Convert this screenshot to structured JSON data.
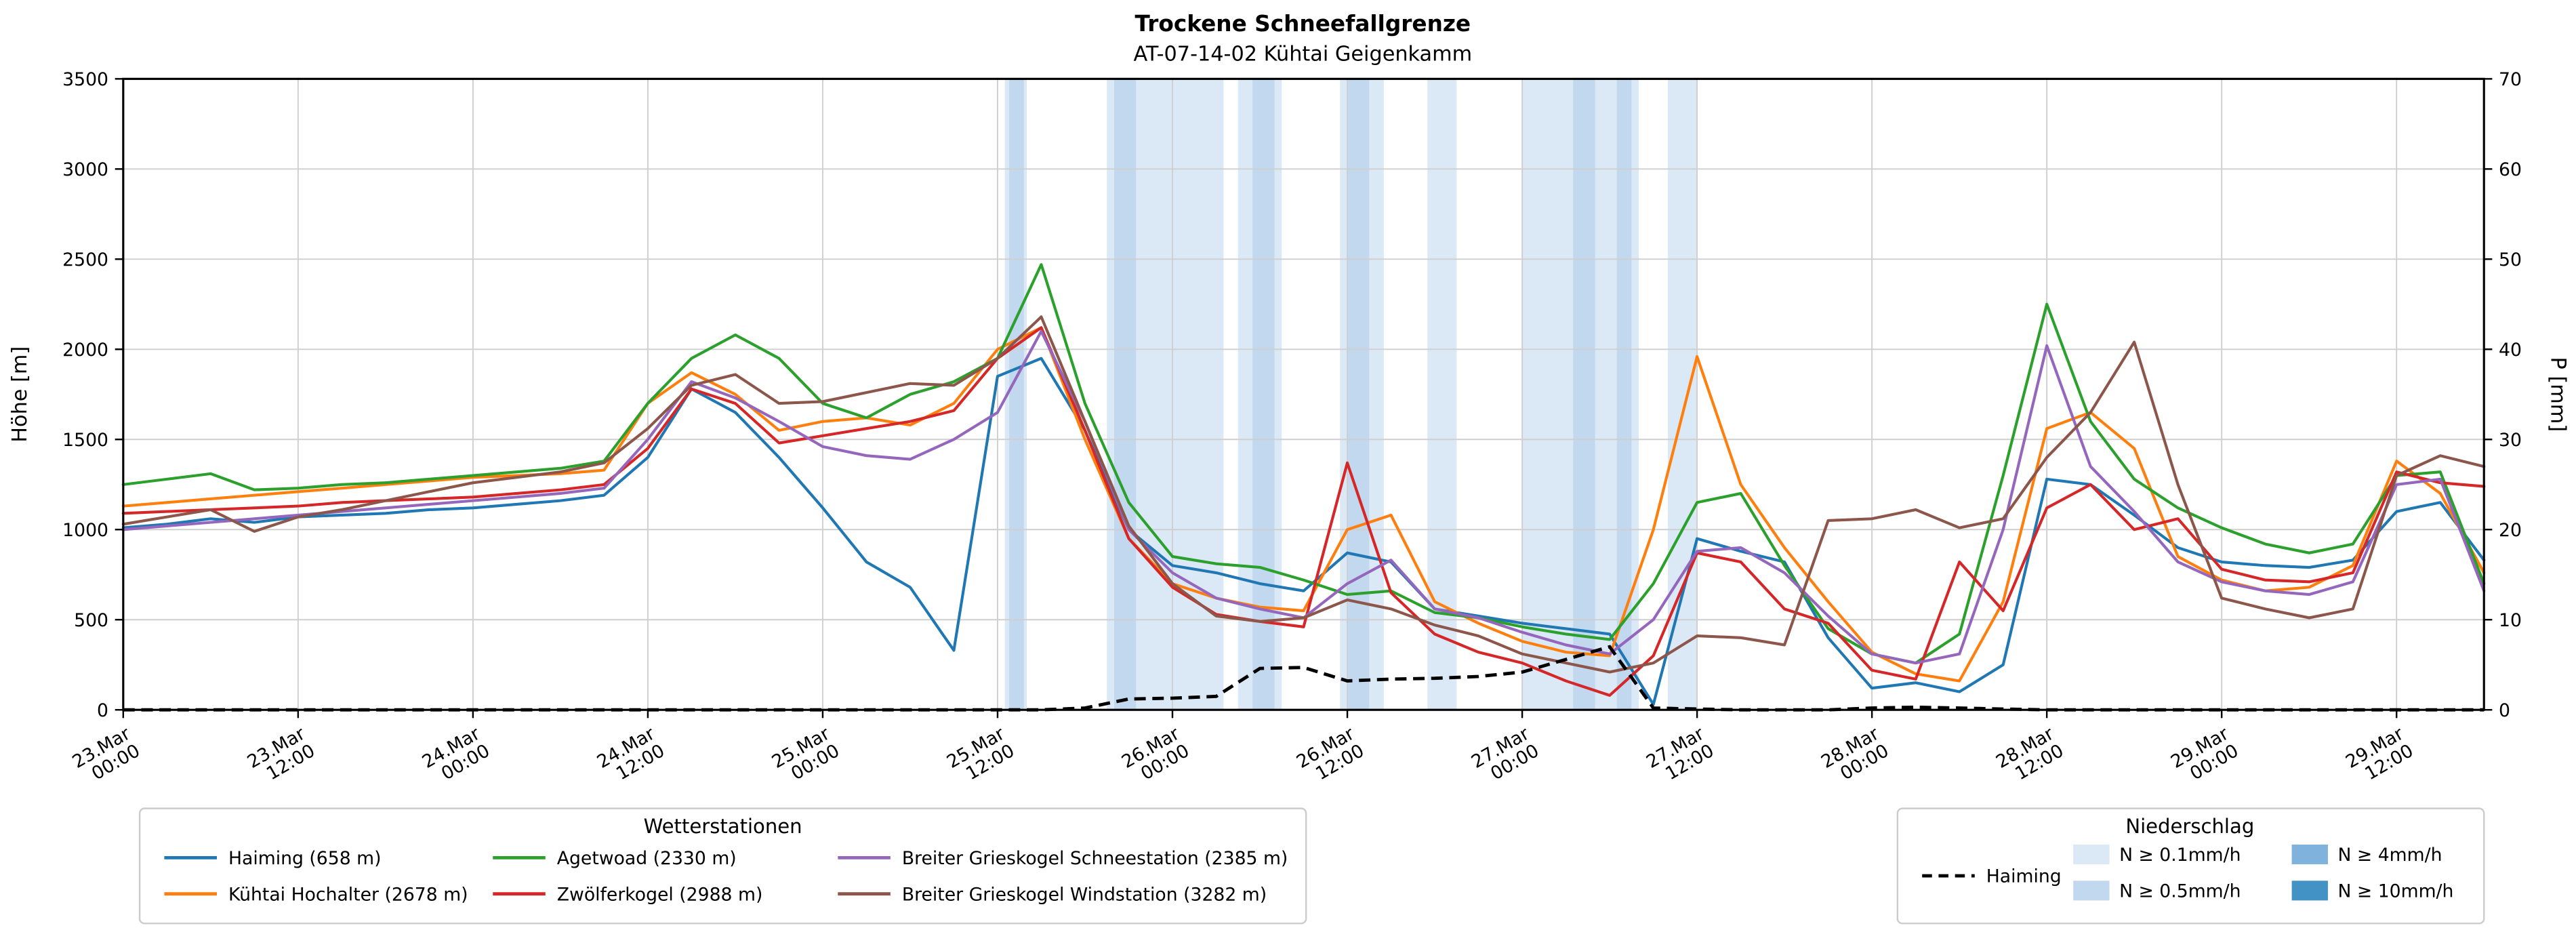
{
  "title": "Trockene Schneefallgrenze",
  "subtitle": "AT-07-14-02 Kühtai Geigenkamm",
  "chart_data": {
    "type": "line",
    "x_start": 0,
    "x_step": 3,
    "x_max": 162,
    "x_ticks": [
      {
        "t": 0,
        "date": "23.Mar",
        "time": "00:00"
      },
      {
        "t": 12,
        "date": "23.Mar",
        "time": "12:00"
      },
      {
        "t": 24,
        "date": "24.Mar",
        "time": "00:00"
      },
      {
        "t": 36,
        "date": "24.Mar",
        "time": "12:00"
      },
      {
        "t": 48,
        "date": "25.Mar",
        "time": "00:00"
      },
      {
        "t": 60,
        "date": "25.Mar",
        "time": "12:00"
      },
      {
        "t": 72,
        "date": "26.Mar",
        "time": "00:00"
      },
      {
        "t": 84,
        "date": "26.Mar",
        "time": "12:00"
      },
      {
        "t": 96,
        "date": "27.Mar",
        "time": "00:00"
      },
      {
        "t": 108,
        "date": "27.Mar",
        "time": "12:00"
      },
      {
        "t": 120,
        "date": "28.Mar",
        "time": "00:00"
      },
      {
        "t": 132,
        "date": "28.Mar",
        "time": "12:00"
      },
      {
        "t": 144,
        "date": "29.Mar",
        "time": "00:00"
      },
      {
        "t": 156,
        "date": "29.Mar",
        "time": "12:00"
      }
    ],
    "y_left": {
      "label": "Höhe [m]",
      "min": 0,
      "max": 3500,
      "step": 500
    },
    "y_right": {
      "label": "P [mm]",
      "min": 0,
      "max": 70,
      "step": 10
    },
    "series": [
      {
        "name": "Haiming (658 m)",
        "color": "#1f77b4",
        "values": [
          1010,
          1030,
          1060,
          1040,
          1070,
          1080,
          1090,
          1110,
          1120,
          1140,
          1160,
          1190,
          1400,
          1780,
          1650,
          1400,
          1120,
          820,
          680,
          330,
          1850,
          1950,
          1550,
          1000,
          800,
          760,
          700,
          660,
          870,
          820,
          560,
          520,
          480,
          450,
          420,
          30,
          950,
          880,
          820,
          400,
          120,
          150,
          100,
          250,
          1280,
          1250,
          1080,
          900,
          820,
          800,
          790,
          830,
          1100,
          1150,
          830
        ]
      },
      {
        "name": "Kühtai Hochalter (2678 m)",
        "color": "#ff7f0e",
        "values": [
          1130,
          1150,
          1170,
          1190,
          1210,
          1230,
          1250,
          1270,
          1290,
          1300,
          1310,
          1330,
          1700,
          1870,
          1750,
          1550,
          1600,
          1620,
          1580,
          1700,
          2000,
          2120,
          1500,
          950,
          700,
          620,
          570,
          550,
          1000,
          1080,
          600,
          480,
          380,
          320,
          300,
          1000,
          1960,
          1250,
          900,
          600,
          320,
          200,
          160,
          600,
          1560,
          1650,
          1450,
          850,
          720,
          660,
          680,
          800,
          1380,
          1200,
          760
        ]
      },
      {
        "name": "Agetwoad (2330 m)",
        "color": "#2ca02c",
        "values": [
          1250,
          1280,
          1310,
          1220,
          1230,
          1250,
          1260,
          1280,
          1300,
          1320,
          1340,
          1380,
          1700,
          1950,
          2080,
          1950,
          1700,
          1620,
          1750,
          1820,
          1950,
          2470,
          1700,
          1150,
          850,
          810,
          790,
          720,
          640,
          660,
          540,
          510,
          460,
          420,
          390,
          700,
          1150,
          1200,
          800,
          450,
          310,
          260,
          420,
          1300,
          2250,
          1600,
          1280,
          1120,
          1010,
          920,
          870,
          920,
          1300,
          1320,
          700
        ]
      },
      {
        "name": "Zwölferkogel (2988 m)",
        "color": "#d62728",
        "values": [
          1090,
          1100,
          1110,
          1120,
          1130,
          1150,
          1160,
          1170,
          1180,
          1200,
          1220,
          1250,
          1450,
          1780,
          1700,
          1480,
          1520,
          1560,
          1600,
          1660,
          1950,
          2120,
          1550,
          950,
          680,
          530,
          490,
          460,
          1370,
          650,
          420,
          320,
          260,
          160,
          80,
          300,
          870,
          820,
          560,
          480,
          220,
          170,
          820,
          550,
          1120,
          1250,
          1000,
          1060,
          780,
          720,
          710,
          760,
          1320,
          1260,
          1240
        ]
      },
      {
        "name": "Breiter Grieskogel Schneestation (2385 m)",
        "color": "#9467bd",
        "values": [
          1000,
          1020,
          1040,
          1060,
          1080,
          1100,
          1120,
          1140,
          1160,
          1180,
          1200,
          1230,
          1500,
          1820,
          1730,
          1600,
          1460,
          1410,
          1390,
          1500,
          1650,
          2100,
          1600,
          1000,
          760,
          620,
          560,
          510,
          700,
          830,
          560,
          510,
          430,
          360,
          310,
          500,
          880,
          900,
          760,
          520,
          310,
          260,
          310,
          1000,
          2020,
          1350,
          1100,
          820,
          710,
          660,
          640,
          710,
          1250,
          1280,
          660
        ]
      },
      {
        "name": "Breiter Grieskogel Windstation (3282 m)",
        "color": "#8c564b",
        "values": [
          1030,
          1070,
          1110,
          990,
          1070,
          1110,
          1160,
          1210,
          1260,
          1290,
          1320,
          1370,
          1560,
          1800,
          1860,
          1700,
          1710,
          1760,
          1810,
          1800,
          1950,
          2180,
          1600,
          1020,
          700,
          520,
          490,
          510,
          610,
          560,
          470,
          410,
          310,
          260,
          210,
          260,
          410,
          400,
          360,
          1050,
          1060,
          1110,
          1010,
          1060,
          1400,
          1650,
          2040,
          1250,
          620,
          560,
          510,
          560,
          1300,
          1410,
          1350
        ]
      }
    ],
    "precip_line": {
      "name": "Haiming",
      "color": "#000000",
      "axis": "right",
      "dashed": true,
      "values": [
        0,
        0,
        0,
        0,
        0,
        0,
        0,
        0,
        0,
        0,
        0,
        0,
        0,
        0,
        0,
        0,
        0,
        0,
        0,
        0,
        0,
        0,
        0.2,
        1.2,
        1.3,
        1.5,
        4.6,
        4.7,
        3.2,
        3.4,
        3.5,
        3.7,
        4.2,
        5.6,
        7.0,
        0.2,
        0.1,
        0,
        0,
        0,
        0.2,
        0.3,
        0.2,
        0.1,
        0,
        0,
        0,
        0,
        0,
        0,
        0,
        0,
        0,
        0,
        0
      ]
    },
    "band_colors": {
      "0.1": "#dbe8f6",
      "0.5": "#c1d8ee",
      "4": "#7fb2dc",
      "10": "#4292c6"
    },
    "precip_bands": [
      {
        "start": 60.5,
        "end": 62,
        "level": "0.1"
      },
      {
        "start": 60.8,
        "end": 61.8,
        "level": "0.5"
      },
      {
        "start": 67.5,
        "end": 75.5,
        "level": "0.1"
      },
      {
        "start": 68,
        "end": 69.5,
        "level": "0.5"
      },
      {
        "start": 76.5,
        "end": 79.5,
        "level": "0.1"
      },
      {
        "start": 77.5,
        "end": 79,
        "level": "0.5"
      },
      {
        "start": 83.5,
        "end": 86.5,
        "level": "0.1"
      },
      {
        "start": 84,
        "end": 85.5,
        "level": "0.5"
      },
      {
        "start": 89.5,
        "end": 91.5,
        "level": "0.1"
      },
      {
        "start": 96,
        "end": 104,
        "level": "0.1"
      },
      {
        "start": 99.5,
        "end": 101,
        "level": "0.5"
      },
      {
        "start": 102.5,
        "end": 103.5,
        "level": "0.5"
      },
      {
        "start": 106,
        "end": 108,
        "level": "0.1"
      }
    ]
  },
  "legend_stations": {
    "title": "Wetterstationen",
    "items": [
      {
        "label": "Haiming (658 m)",
        "color": "#1f77b4"
      },
      {
        "label": "Kühtai Hochalter (2678 m)",
        "color": "#ff7f0e"
      },
      {
        "label": "Agetwoad (2330 m)",
        "color": "#2ca02c"
      },
      {
        "label": "Zwölferkogel (2988 m)",
        "color": "#d62728"
      },
      {
        "label": "Breiter Grieskogel Schneestation (2385 m)",
        "color": "#9467bd"
      },
      {
        "label": "Breiter Grieskogel Windstation (3282 m)",
        "color": "#8c564b"
      }
    ]
  },
  "legend_precip": {
    "title": "Niederschlag",
    "line_item": {
      "label": "Haiming",
      "color": "#000000"
    },
    "patch_items": [
      {
        "label": "N ≥ 0.1mm/h",
        "color": "#dbe8f6"
      },
      {
        "label": "N ≥ 0.5mm/h",
        "color": "#c1d8ee"
      },
      {
        "label": "N ≥ 4mm/h",
        "color": "#7fb2dc"
      },
      {
        "label": "N ≥ 10mm/h",
        "color": "#4292c6"
      }
    ]
  }
}
